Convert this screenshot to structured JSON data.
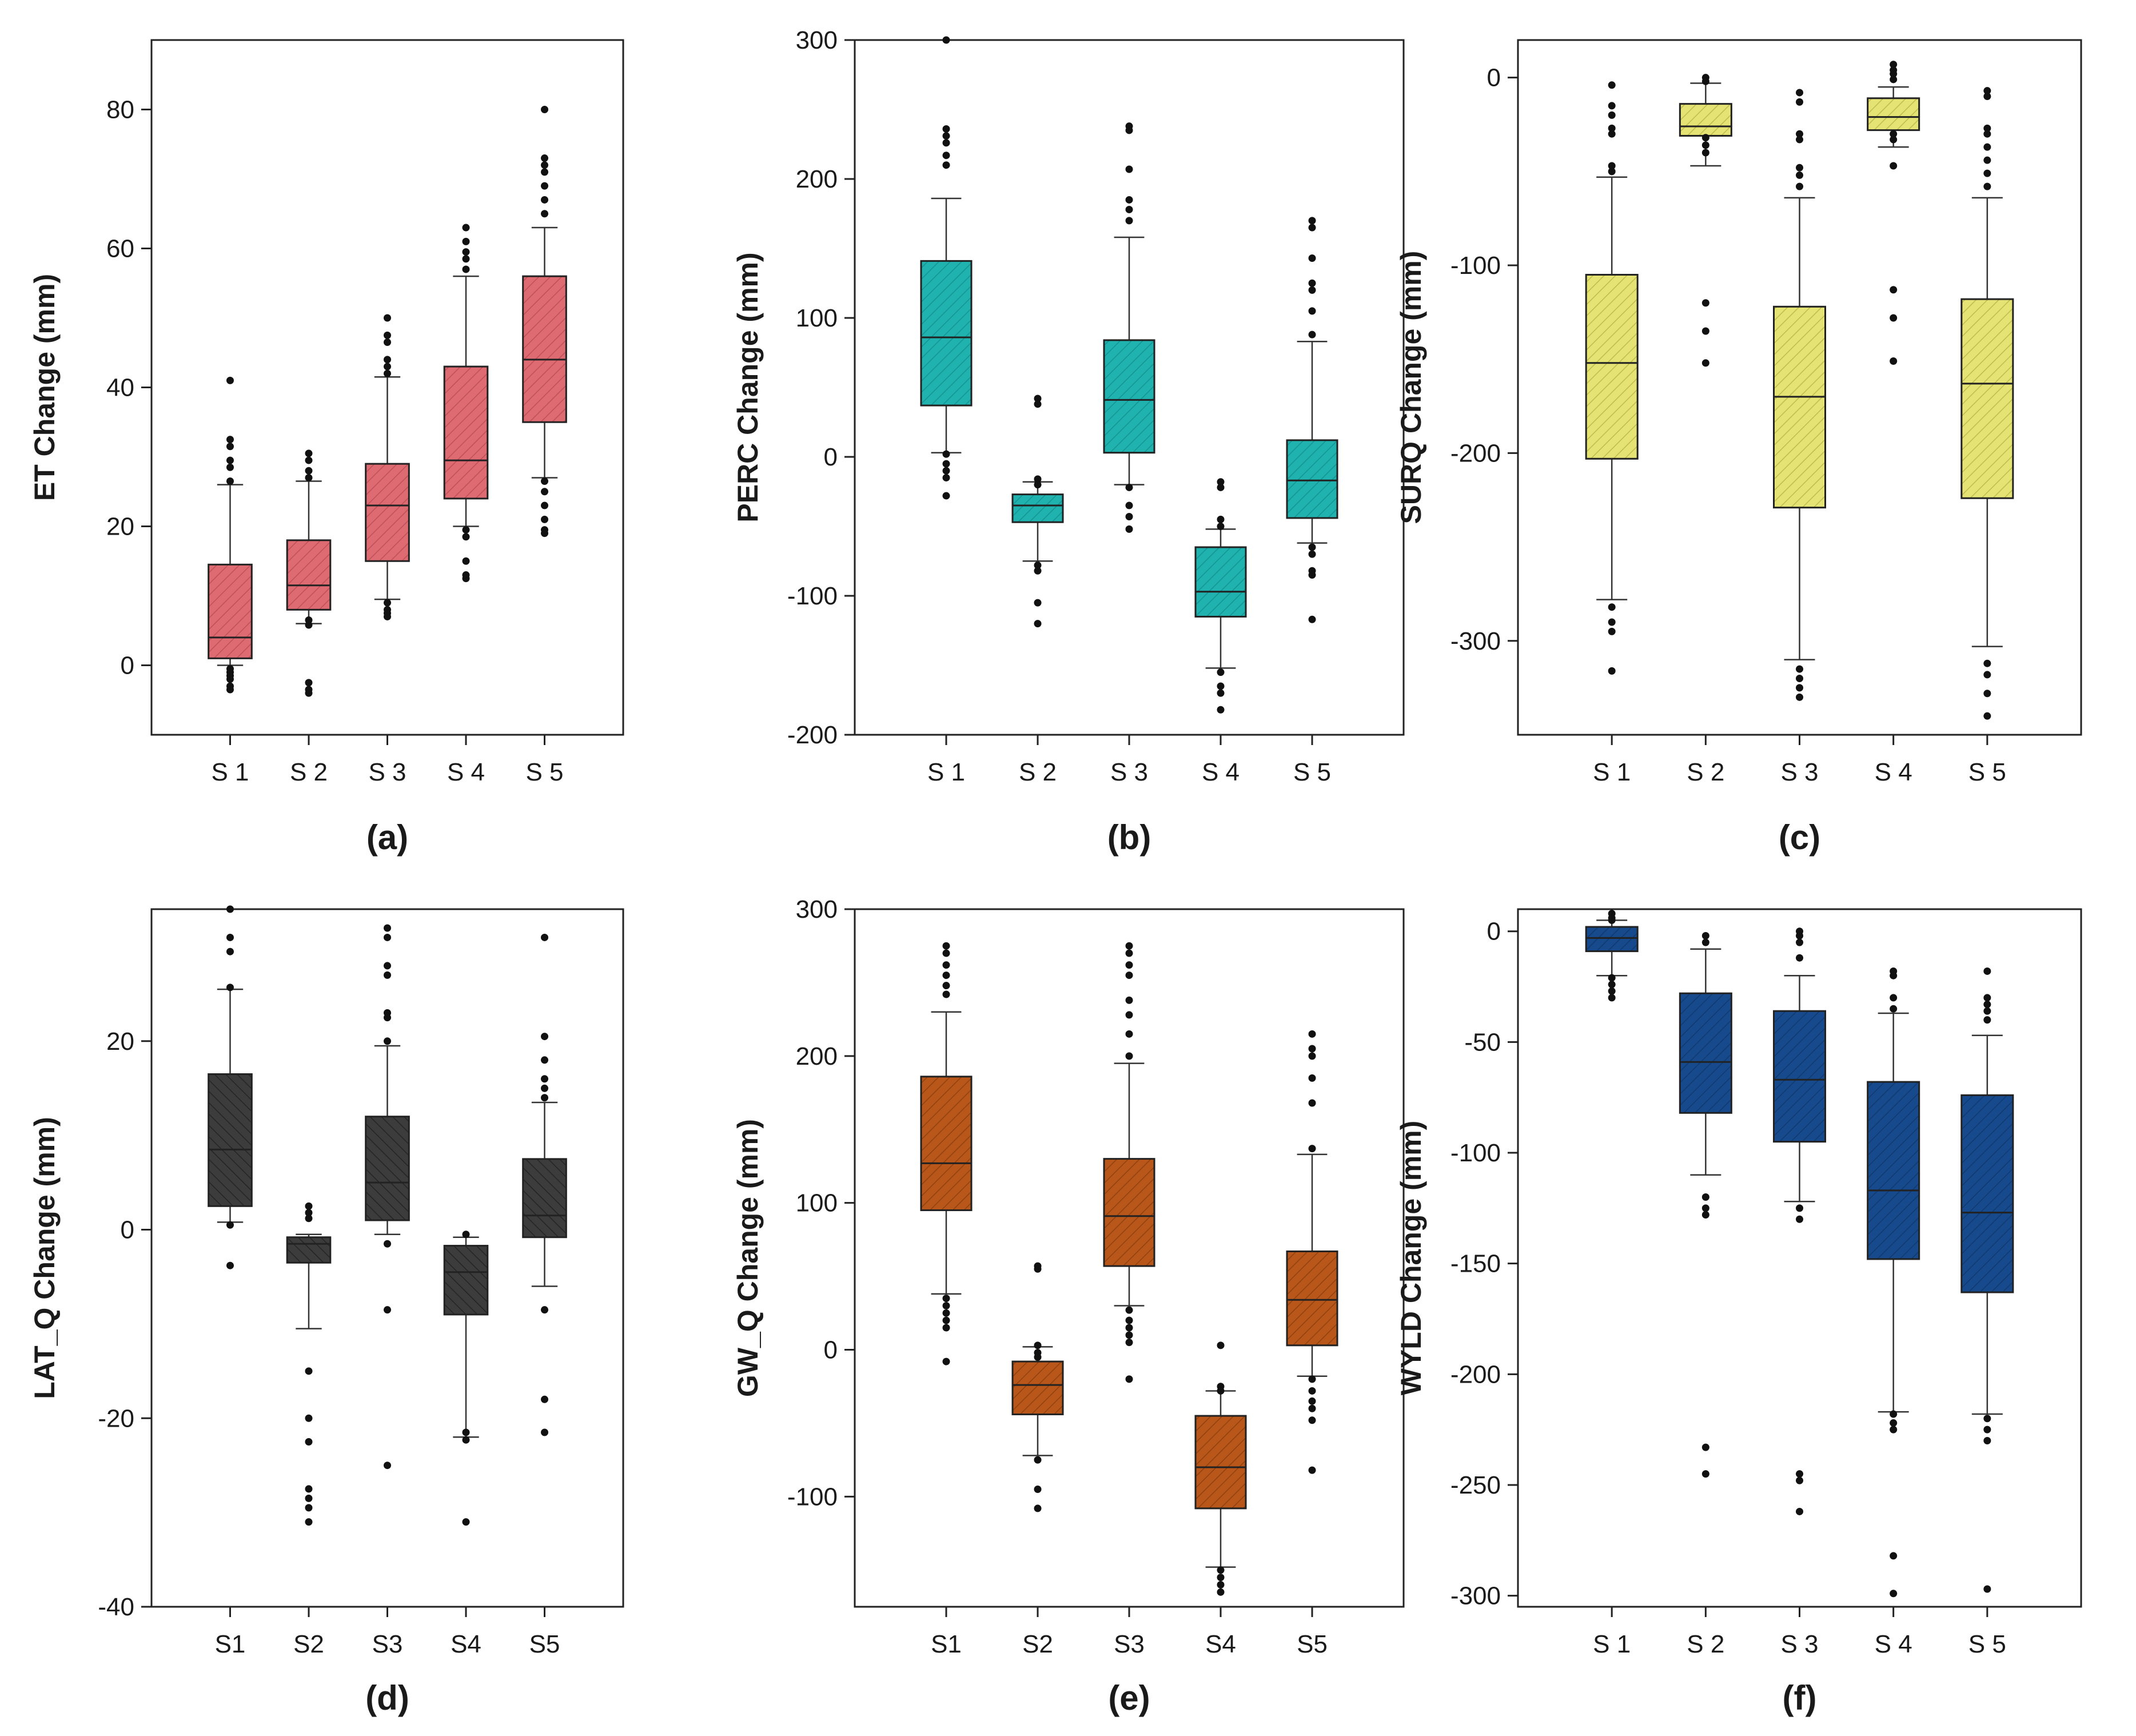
{
  "colors": {
    "a": "#de6a72",
    "b": "#20b2ae",
    "c": "#e4e373",
    "d": "#3c3c3c",
    "e": "#b85719",
    "f": "#174a8c"
  },
  "chart_data": [
    {
      "type": "box",
      "panel_label": "(a)",
      "ylabel": "ET Change (mm)",
      "categories": [
        "S 1",
        "S 2",
        "S 3",
        "S 4",
        "S 5"
      ],
      "ylim": [
        -10,
        90
      ],
      "yticks": [
        0,
        20,
        40,
        60,
        80
      ],
      "boxes": [
        {
          "q1": 1,
          "median": 4,
          "q3": 14.5,
          "whisker_low": 0,
          "whisker_high": 26,
          "outliers": [
            41,
            32.5,
            31.5,
            29.5,
            28.5,
            26.5,
            -0.5,
            -1,
            -1.5,
            -2,
            -3,
            -3.5
          ]
        },
        {
          "q1": 8,
          "median": 11.5,
          "q3": 18,
          "whisker_low": 6,
          "whisker_high": 26.5,
          "outliers": [
            30.5,
            29.5,
            28,
            27,
            6.5,
            5.8,
            -2.5,
            -3.5,
            -4
          ]
        },
        {
          "q1": 15,
          "median": 23,
          "q3": 29,
          "whisker_low": 9.5,
          "whisker_high": 41.5,
          "outliers": [
            50,
            47.5,
            46.5,
            44,
            43,
            42,
            9,
            8,
            7.5,
            7
          ]
        },
        {
          "q1": 24,
          "median": 29.5,
          "q3": 43,
          "whisker_low": 20,
          "whisker_high": 56,
          "outliers": [
            63,
            61,
            59.5,
            58.5,
            57,
            19.5,
            18.5,
            15,
            13,
            12.5
          ]
        },
        {
          "q1": 35,
          "median": 44,
          "q3": 56,
          "whisker_low": 27,
          "whisker_high": 63,
          "outliers": [
            80,
            73,
            72,
            71,
            69,
            67,
            65,
            26.5,
            25,
            23,
            21,
            19.5,
            19
          ]
        }
      ]
    },
    {
      "type": "box",
      "panel_label": "(b)",
      "ylabel": "PERC Change (mm)",
      "categories": [
        "S 1",
        "S 2",
        "S 3",
        "S 4",
        "S 5"
      ],
      "ylim": [
        -200,
        300
      ],
      "yticks": [
        -200,
        -100,
        0,
        100,
        200,
        300
      ],
      "boxes": [
        {
          "q1": 37,
          "median": 86,
          "q3": 141,
          "whisker_low": 3,
          "whisker_high": 186,
          "outliers": [
            300,
            236,
            231,
            226,
            217,
            210,
            2,
            -5,
            -10,
            -15,
            -28
          ]
        },
        {
          "q1": -47,
          "median": -35,
          "q3": -27,
          "whisker_low": -75,
          "whisker_high": -18,
          "outliers": [
            42,
            38,
            -16,
            -20,
            -78,
            -82,
            -105,
            -120
          ]
        },
        {
          "q1": 3,
          "median": 41,
          "q3": 84,
          "whisker_low": -20,
          "whisker_high": 158,
          "outliers": [
            238,
            235,
            207,
            185,
            178,
            170,
            -22,
            -35,
            -43,
            -52
          ]
        },
        {
          "q1": -115,
          "median": -97,
          "q3": -65,
          "whisker_low": -152,
          "whisker_high": -52,
          "outliers": [
            -18,
            -22,
            -45,
            -50,
            -155,
            -165,
            -170,
            -182
          ]
        },
        {
          "q1": -44,
          "median": -17,
          "q3": 12,
          "whisker_low": -62,
          "whisker_high": 83,
          "outliers": [
            170,
            165,
            143,
            125,
            120,
            105,
            88,
            -65,
            -70,
            -82,
            -85,
            -117
          ]
        }
      ]
    },
    {
      "type": "box",
      "panel_label": "(c)",
      "ylabel": "SURQ Change (mm)",
      "categories": [
        "S 1",
        "S 2",
        "S 3",
        "S 4",
        "S 5"
      ],
      "ylim": [
        -350,
        20
      ],
      "yticks": [
        -300,
        -200,
        -100,
        0
      ],
      "boxes": [
        {
          "q1": -203,
          "median": -152,
          "q3": -105,
          "whisker_low": -278,
          "whisker_high": -53,
          "outliers": [
            -4,
            -15,
            -20,
            -27,
            -30,
            -47,
            -50,
            -282,
            -290,
            -295,
            -316
          ]
        },
        {
          "q1": -31,
          "median": -26,
          "q3": -14,
          "whisker_low": -47,
          "whisker_high": -3,
          "outliers": [
            0,
            -2,
            -32,
            -36,
            -40,
            -120,
            -135,
            -152
          ]
        },
        {
          "q1": -229,
          "median": -170,
          "q3": -122,
          "whisker_low": -310,
          "whisker_high": -64,
          "outliers": [
            -8,
            -13,
            -30,
            -33,
            -48,
            -52,
            -58,
            -315,
            -320,
            -325,
            -330
          ]
        },
        {
          "q1": -28,
          "median": -21,
          "q3": -11,
          "whisker_low": -37,
          "whisker_high": -5,
          "outliers": [
            7,
            4,
            2,
            -1,
            -30,
            -33,
            -47,
            -113,
            -128,
            -151
          ]
        },
        {
          "q1": -224,
          "median": -163,
          "q3": -118,
          "whisker_low": -303,
          "whisker_high": -64,
          "outliers": [
            -7,
            -10,
            -27,
            -30,
            -37,
            -44,
            -51,
            -58,
            -312,
            -318,
            -328,
            -340
          ]
        }
      ]
    },
    {
      "type": "box",
      "panel_label": "(d)",
      "ylabel": "LAT_Q Change (mm)",
      "categories": [
        "S1",
        "S2",
        "S3",
        "S4",
        "S5"
      ],
      "ylim": [
        -40,
        34
      ],
      "yticks": [
        -40,
        -20,
        0,
        20
      ],
      "boxes": [
        {
          "q1": 2.5,
          "median": 8.5,
          "q3": 16.5,
          "whisker_low": 0.8,
          "whisker_high": 25.5,
          "outliers": [
            34,
            31,
            29.5,
            25.7,
            0.5,
            -3.8
          ]
        },
        {
          "q1": -3.5,
          "median": -1.5,
          "q3": -0.8,
          "whisker_low": -10.5,
          "whisker_high": -0.5,
          "outliers": [
            2.5,
            1.8,
            1.2,
            -15,
            -20,
            -22.5,
            -27.5,
            -28.5,
            -29.5,
            -31
          ]
        },
        {
          "q1": 1,
          "median": 5,
          "q3": 12,
          "whisker_low": -0.5,
          "whisker_high": 19.5,
          "outliers": [
            32,
            31,
            28,
            27,
            23,
            22.5,
            20,
            -1.5,
            -8.5,
            -25
          ]
        },
        {
          "q1": -9,
          "median": -4.5,
          "q3": -1.7,
          "whisker_low": -22,
          "whisker_high": -0.8,
          "outliers": [
            -0.5,
            -21.5,
            -22.3,
            -31
          ]
        },
        {
          "q1": -0.8,
          "median": 1.5,
          "q3": 7.5,
          "whisker_low": -6,
          "whisker_high": 13.5,
          "outliers": [
            31,
            20.5,
            18,
            16,
            15,
            14,
            -8.5,
            -18,
            -21.5
          ]
        }
      ]
    },
    {
      "type": "box",
      "panel_label": "(e)",
      "ylabel": "GW_Q Change (mm)",
      "categories": [
        "S1",
        "S2",
        "S3",
        "S4",
        "S5"
      ],
      "ylim": [
        -175,
        300
      ],
      "yticks": [
        -100,
        0,
        100,
        200,
        300
      ],
      "boxes": [
        {
          "q1": 95,
          "median": 127,
          "q3": 186,
          "whisker_low": 38,
          "whisker_high": 230,
          "outliers": [
            275,
            270,
            262,
            255,
            248,
            242,
            35,
            30,
            25,
            20,
            15,
            -8
          ]
        },
        {
          "q1": -44,
          "median": -24,
          "q3": -8,
          "whisker_low": -72,
          "whisker_high": 2,
          "outliers": [
            57,
            55,
            3,
            -2,
            -5,
            -75,
            -95,
            -108
          ]
        },
        {
          "q1": 57,
          "median": 91,
          "q3": 130,
          "whisker_low": 30,
          "whisker_high": 195,
          "outliers": [
            275,
            270,
            262,
            255,
            238,
            228,
            215,
            200,
            27,
            20,
            15,
            10,
            5,
            -20
          ]
        },
        {
          "q1": -108,
          "median": -80,
          "q3": -45,
          "whisker_low": -148,
          "whisker_high": -28,
          "outliers": [
            3,
            -25,
            -28,
            -150,
            -155,
            -160,
            -165
          ]
        },
        {
          "q1": 3,
          "median": 34,
          "q3": 67,
          "whisker_low": -18,
          "whisker_high": 133,
          "outliers": [
            215,
            205,
            200,
            185,
            168,
            137,
            -20,
            -28,
            -35,
            -40,
            -48,
            -82
          ]
        }
      ]
    },
    {
      "type": "box",
      "panel_label": "(f)",
      "ylabel": "WYLD Change (mm)",
      "categories": [
        "S 1",
        "S 2",
        "S 3",
        "S 4",
        "S 5"
      ],
      "ylim": [
        -305,
        10
      ],
      "yticks": [
        -300,
        -250,
        -200,
        -150,
        -100,
        -50,
        0
      ],
      "boxes": [
        {
          "q1": -9,
          "median": -3,
          "q3": 2,
          "whisker_low": -20,
          "whisker_high": 5,
          "outliers": [
            8,
            6,
            5,
            -21,
            -24,
            -27,
            -30
          ]
        },
        {
          "q1": -82,
          "median": -59,
          "q3": -28,
          "whisker_low": -110,
          "whisker_high": -8,
          "outliers": [
            -2,
            -5,
            -120,
            -125,
            -128,
            -233,
            -245
          ]
        },
        {
          "q1": -95,
          "median": -67,
          "q3": -36,
          "whisker_low": -122,
          "whisker_high": -20,
          "outliers": [
            0,
            -2,
            -5,
            -12,
            -125,
            -130,
            -245,
            -248,
            -262
          ]
        },
        {
          "q1": -148,
          "median": -117,
          "q3": -68,
          "whisker_low": -217,
          "whisker_high": -37,
          "outliers": [
            -18,
            -20,
            -30,
            -35,
            -218,
            -222,
            -225,
            -282,
            -299
          ]
        },
        {
          "q1": -163,
          "median": -127,
          "q3": -74,
          "whisker_low": -218,
          "whisker_high": -47,
          "outliers": [
            -18,
            -30,
            -33,
            -36,
            -40,
            -220,
            -225,
            -230,
            -297
          ]
        }
      ]
    }
  ]
}
